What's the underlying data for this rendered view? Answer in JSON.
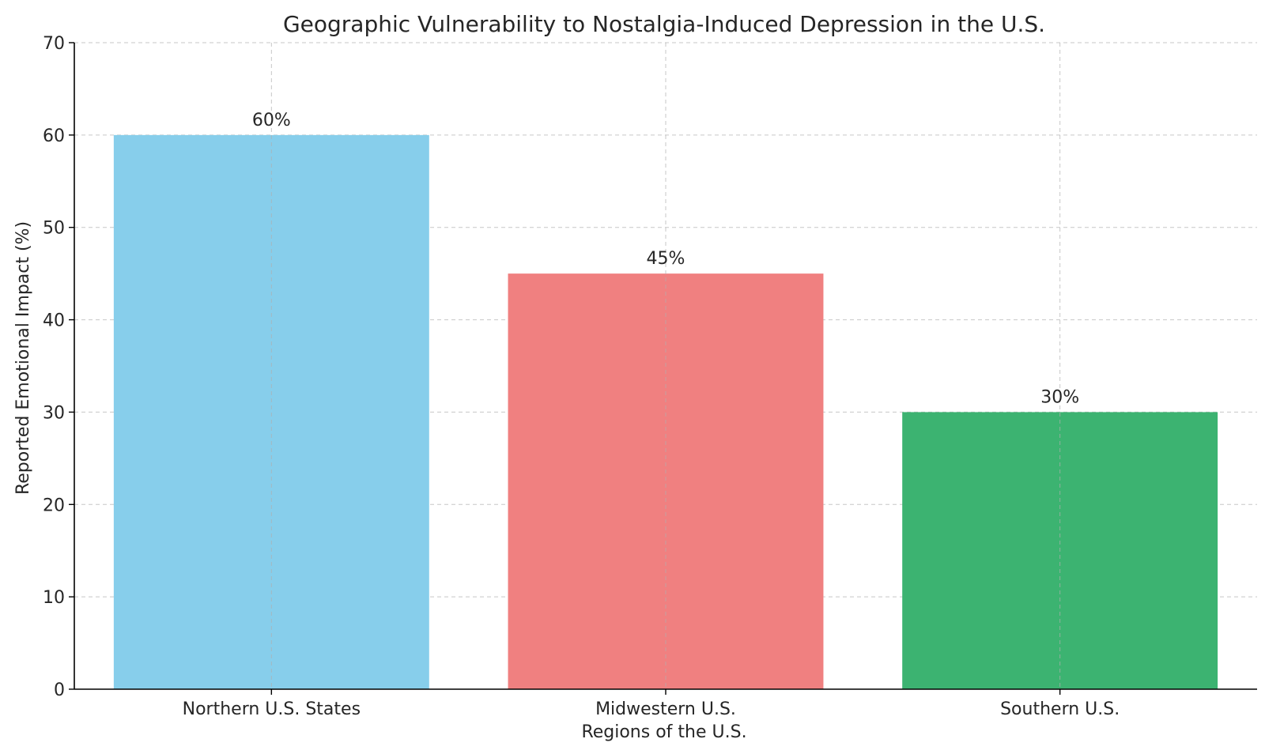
{
  "chart_data": {
    "type": "bar",
    "title": "Geographic Vulnerability to Nostalgia-Induced Depression in the U.S.",
    "xlabel": "Regions of the U.S.",
    "ylabel": "Reported Emotional Impact (%)",
    "categories": [
      "Northern U.S. States",
      "Midwestern U.S.",
      "Southern U.S."
    ],
    "values": [
      60,
      45,
      30
    ],
    "data_labels": [
      "60%",
      "45%",
      "30%"
    ],
    "colors": [
      "#87ceeb",
      "#f08080",
      "#3cb371"
    ],
    "ylim": [
      0,
      70
    ],
    "yticks": [
      0,
      10,
      20,
      30,
      40,
      50,
      60,
      70
    ],
    "grid": true
  }
}
